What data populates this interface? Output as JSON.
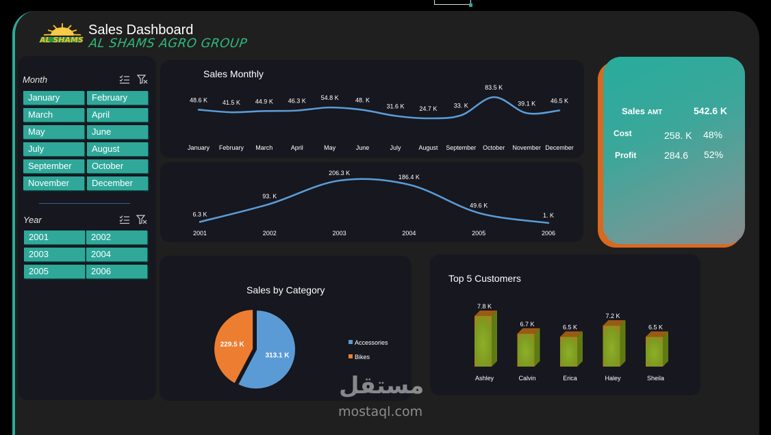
{
  "header": {
    "title": "Sales Dashboard",
    "subtitle": "AL SHAMS AGRO GROUP",
    "logo_text": "AL SHAMS"
  },
  "slicers": {
    "month": {
      "title": "Month",
      "items": [
        "January",
        "February",
        "March",
        "April",
        "May",
        "June",
        "July",
        "August",
        "September",
        "October",
        "November",
        "December"
      ]
    },
    "year": {
      "title": "Year",
      "items": [
        "2001",
        "2002",
        "2003",
        "2004",
        "2005",
        "2006"
      ]
    },
    "icons": [
      "multi-select-icon",
      "clear-filter-icon"
    ]
  },
  "kpi": {
    "sales_label": "Sales",
    "sales_sub": "AMT",
    "sales_value": "542.6 K",
    "cost_label": "Cost",
    "cost_value": "258. K",
    "cost_pct": "48%",
    "profit_label": "Profit",
    "profit_value": "284.6",
    "profit_pct": "52%"
  },
  "colors": {
    "accent": "#2fa89a",
    "line": "#5b9bd5",
    "accessories": "#5b9bd5",
    "bikes": "#ed7d31",
    "kpi_shadow": "#d9691f"
  },
  "watermark": {
    "arabic": "مستقل",
    "latin": "mostaql.com"
  },
  "chart_data": [
    {
      "type": "line",
      "title": "Sales Monthly",
      "categories": [
        "January",
        "February",
        "March",
        "April",
        "May",
        "June",
        "July",
        "August",
        "September",
        "October",
        "November",
        "December"
      ],
      "values": [
        48.6,
        41.5,
        44.9,
        46.3,
        54.8,
        48.0,
        31.6,
        24.7,
        33.0,
        83.5,
        39.1,
        46.5
      ],
      "data_labels": [
        "48.6 K",
        "41.5 K",
        "44.9 K",
        "46.3 K",
        "54.8 K",
        "48. K",
        "31.6 K",
        "24.7 K",
        "33. K",
        "83.5 K",
        "39.1 K",
        "46.5 K"
      ],
      "grid": false
    },
    {
      "type": "line",
      "title": "",
      "categories": [
        "2001",
        "2002",
        "2003",
        "2004",
        "2005",
        "2006"
      ],
      "values": [
        6.3,
        93.0,
        206.3,
        186.4,
        49.6,
        1.0
      ],
      "data_labels": [
        "6.3 K",
        "93. K",
        "206.3 K",
        "186.4 K",
        "49.6 K",
        "1. K"
      ],
      "grid": false
    },
    {
      "type": "pie",
      "title": "Sales by Category",
      "categories": [
        "Accessories",
        "Bikes"
      ],
      "values": [
        313.1,
        229.5
      ],
      "data_labels": [
        "313.1 K",
        "229.5 K"
      ],
      "legend": "right"
    },
    {
      "type": "bar",
      "title": "Top 5 Customers",
      "categories": [
        "Ashley",
        "Calvin",
        "Erica",
        "Haley",
        "Sheila"
      ],
      "values": [
        7.8,
        6.7,
        6.5,
        7.2,
        6.5
      ],
      "data_labels": [
        "7.8 K",
        "6.7 K",
        "6.5 K",
        "7.2 K",
        "6.5 K"
      ]
    }
  ]
}
